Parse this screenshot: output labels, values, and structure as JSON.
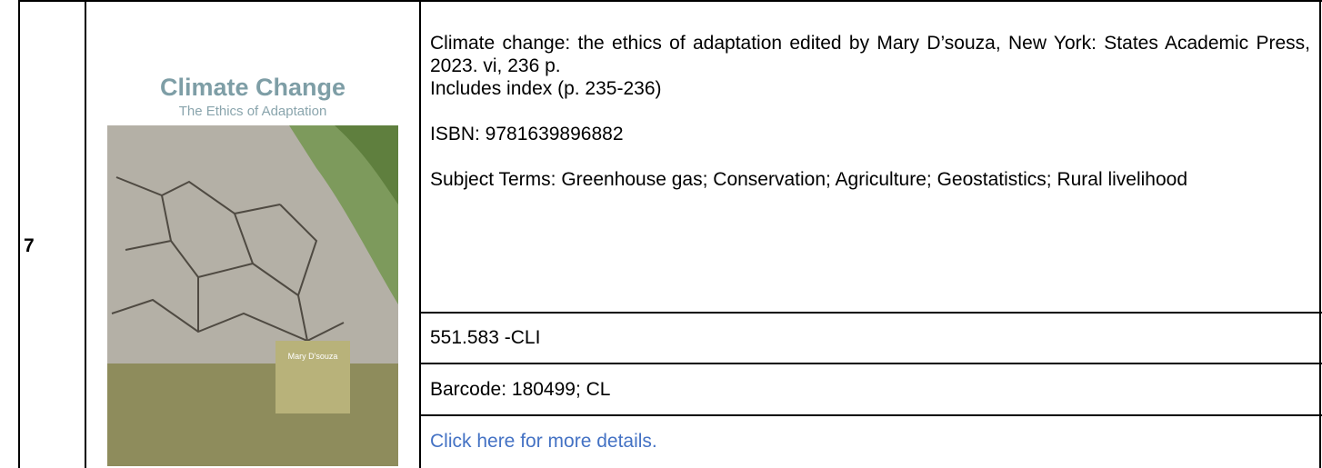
{
  "entry": {
    "number": "7",
    "cover": {
      "title": "Climate Change",
      "subtitle": "The Ethics of Adaptation",
      "author": "Mary D'souza"
    },
    "description": {
      "citation": "Climate change: the ethics of adaptation edited by Mary D’souza, New York: States Academic Press, 2023. vi, 236 p.",
      "note": "Includes index (p. 235-236)",
      "isbn": "ISBN: 9781639896882",
      "subjects": "Subject Terms: Greenhouse gas; Conservation; Agriculture; Geostatistics; Rural livelihood"
    },
    "call_number": "551.583 -CLI",
    "barcode": "Barcode: 180499; CL",
    "link": "Click here for more details."
  }
}
